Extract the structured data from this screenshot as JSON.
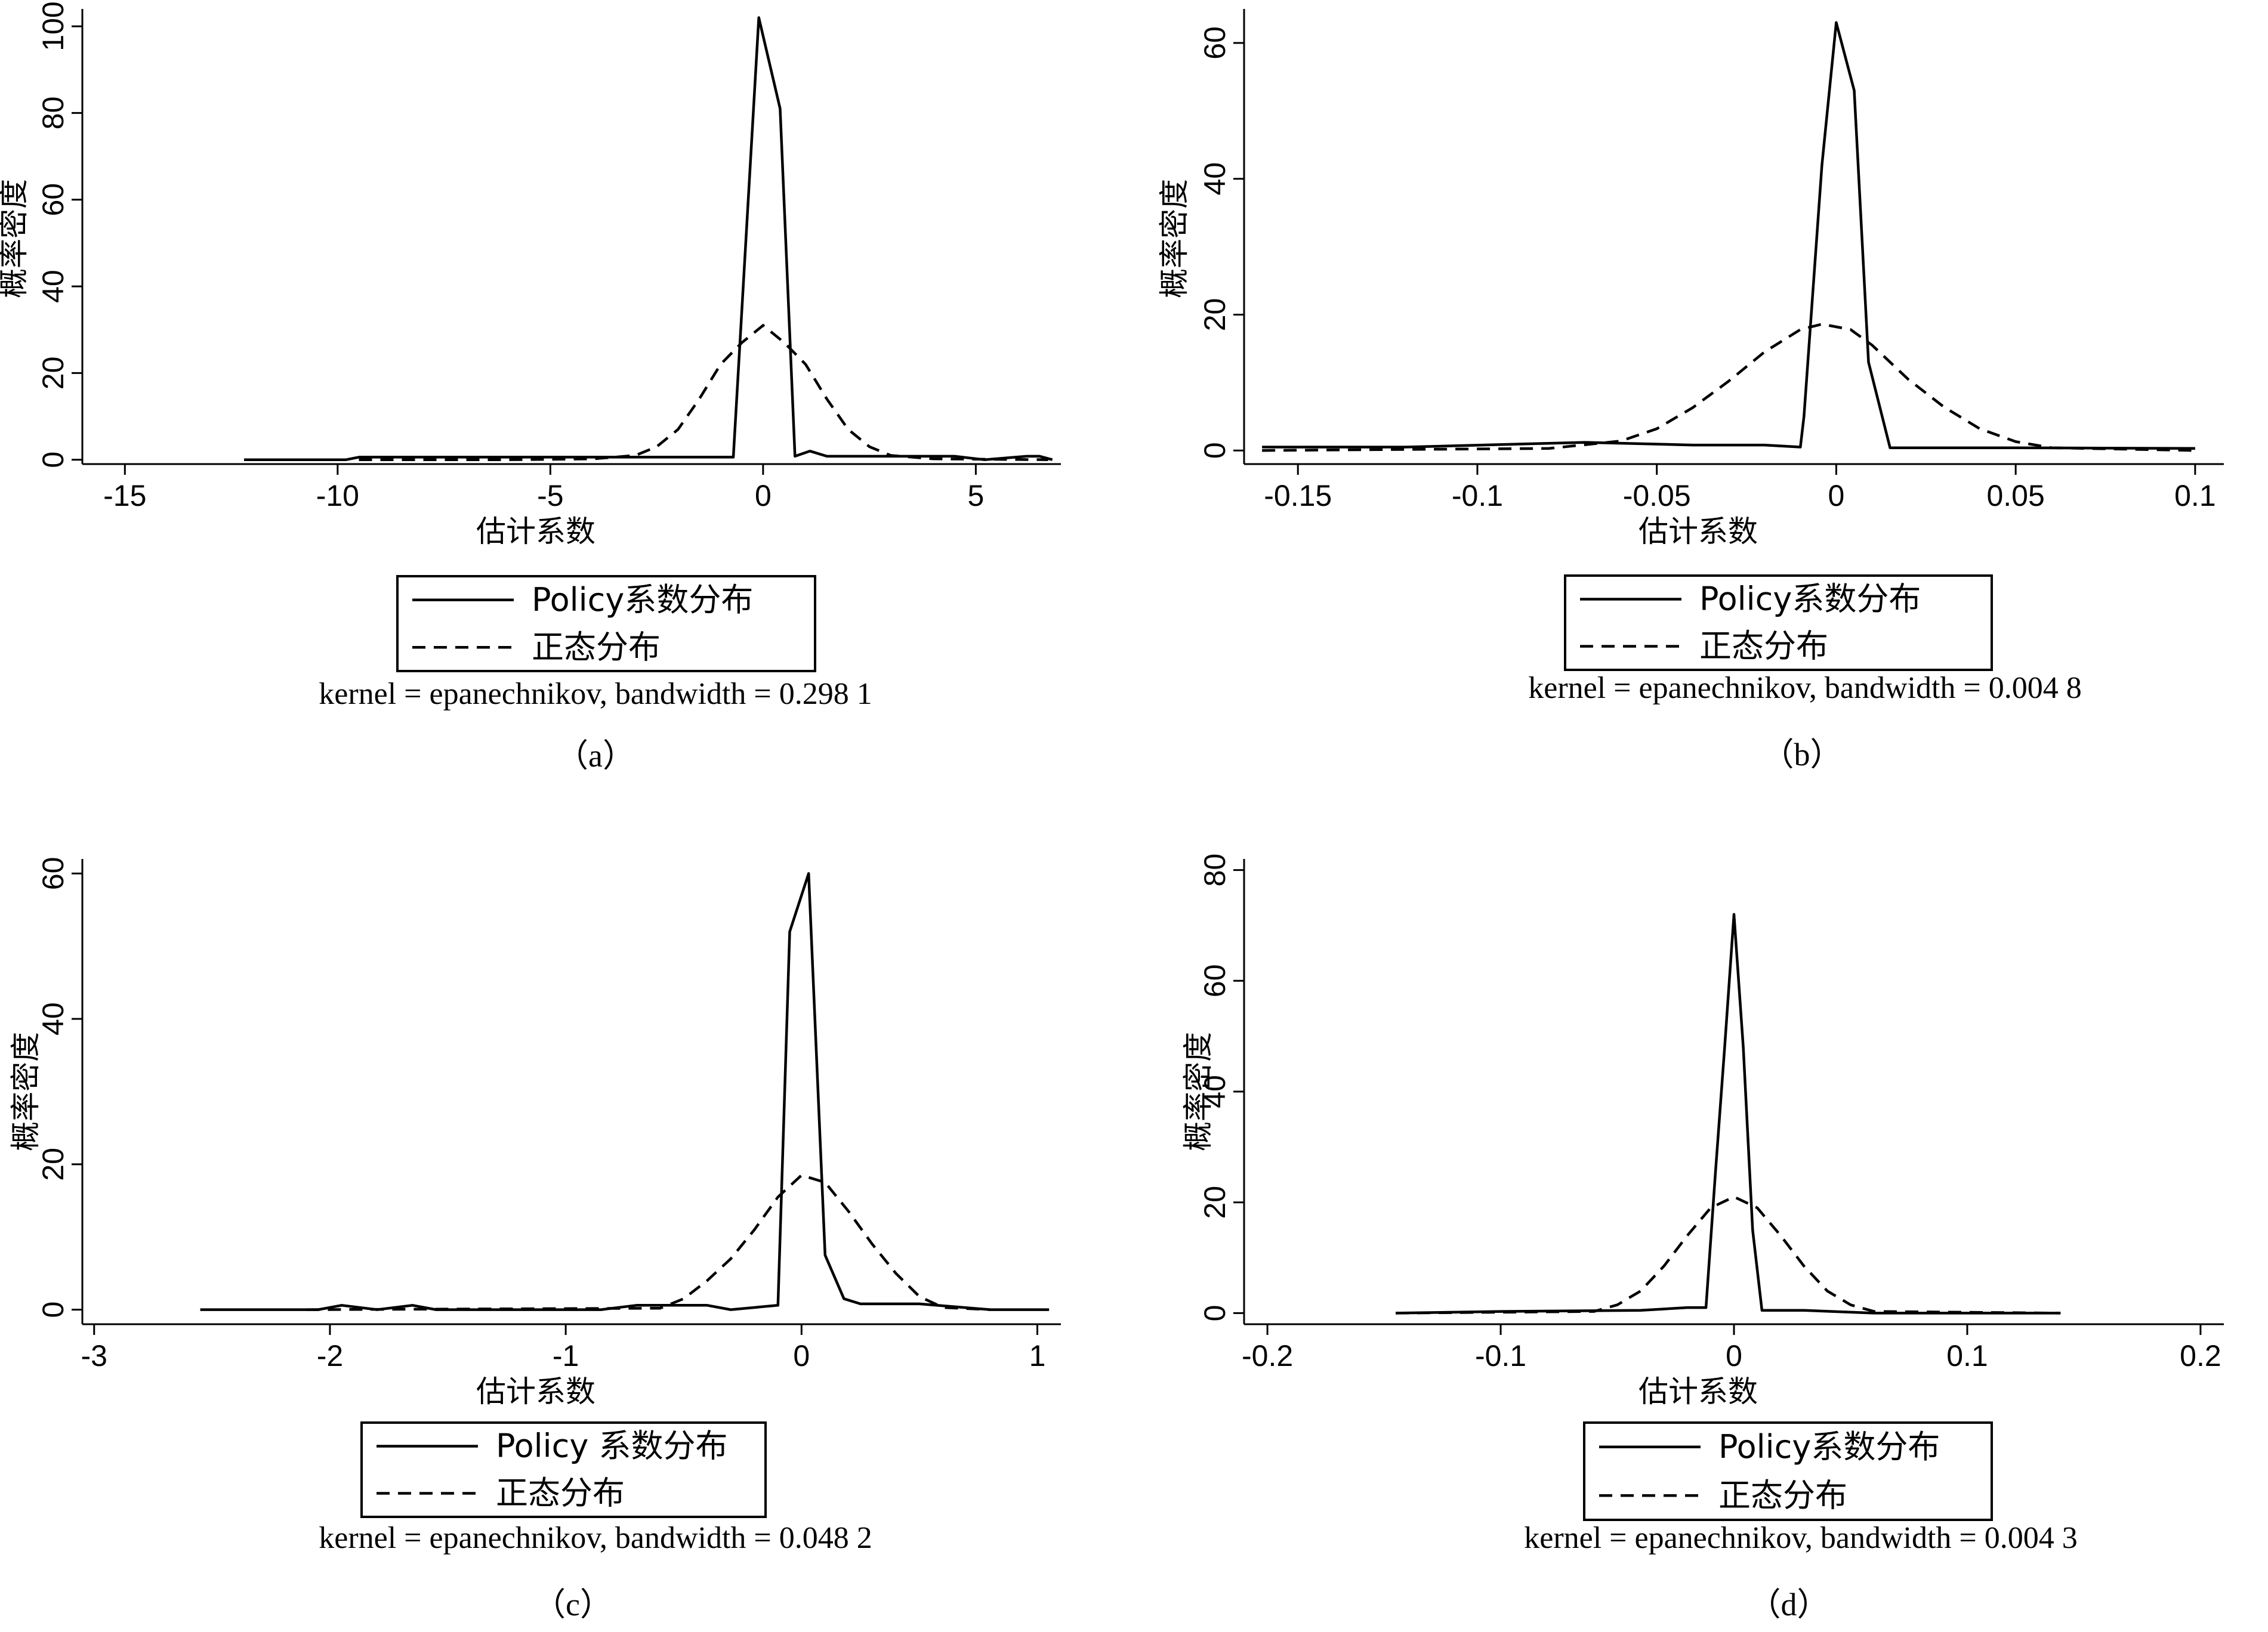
{
  "chart_data": [
    {
      "type": "line",
      "panel": "(a)",
      "caption": "（a）",
      "xlabel": "估计系数",
      "ylabel": "概率密度",
      "xlim": [
        -16,
        7
      ],
      "ylim": [
        -1,
        104
      ],
      "xticks": [
        -15,
        -10,
        -5,
        0,
        5
      ],
      "xtick_labels": [
        "-15",
        "-10",
        "-5",
        "0",
        "5"
      ],
      "yticks": [
        0,
        20,
        40,
        60,
        80,
        100
      ],
      "ytick_labels": [
        "0",
        "20",
        "40",
        "60",
        "80",
        "100"
      ],
      "legend": {
        "solid": "Policy系数分布",
        "dashed": "正态分布"
      },
      "note": "kernel = epanechnikov, bandwidth = 0.298 1",
      "series": [
        {
          "name": "Policy系数分布",
          "style": "solid",
          "x": [
            -12.2,
            -9.8,
            -9.5,
            -5,
            -1,
            -0.7,
            -0.1,
            0.4,
            0.75,
            1.1,
            1.5,
            3,
            4.5,
            5.2,
            6.2,
            6.5,
            6.8
          ],
          "y": [
            0,
            0,
            0.6,
            0.6,
            0.6,
            0.6,
            102,
            81,
            0.8,
            2,
            0.8,
            0.8,
            0.8,
            0,
            0.8,
            0.8,
            0
          ]
        },
        {
          "name": "正态分布",
          "style": "dashed",
          "x": [
            -9.5,
            -6,
            -4,
            -3,
            -2.5,
            -2,
            -1.5,
            -1,
            -0.5,
            0,
            0.5,
            1,
            1.5,
            2,
            2.5,
            3,
            4,
            6.7
          ],
          "y": [
            0,
            0,
            0.2,
            1,
            3,
            7,
            14,
            22,
            27,
            31,
            27,
            22,
            14,
            7,
            3,
            1,
            0.2,
            0
          ]
        }
      ]
    },
    {
      "type": "line",
      "panel": "(b)",
      "caption": "（b）",
      "xlabel": "估计系数",
      "ylabel": "概率密度",
      "xlim": [
        -0.165,
        0.108
      ],
      "ylim": [
        -2,
        65
      ],
      "xticks": [
        -0.15,
        -0.1,
        -0.05,
        0,
        0.05,
        0.1
      ],
      "xtick_labels": [
        "-0.15",
        "-0.1",
        "-0.05",
        "0",
        "0.05",
        "0.1"
      ],
      "yticks": [
        0,
        20,
        40,
        60
      ],
      "ytick_labels": [
        "0",
        "20",
        "40",
        "60"
      ],
      "legend": {
        "solid": "Policy系数分布",
        "dashed": "正态分布"
      },
      "note": "kernel = epanechnikov, bandwidth = 0.004 8",
      "series": [
        {
          "name": "Policy系数分布",
          "style": "solid",
          "x": [
            -0.16,
            -0.12,
            -0.07,
            -0.04,
            -0.02,
            -0.01,
            -0.009,
            -0.004,
            0,
            0.005,
            0.009,
            0.015,
            0.05,
            0.1
          ],
          "y": [
            0.5,
            0.5,
            1.2,
            0.8,
            0.8,
            0.5,
            5,
            42,
            63,
            53,
            13,
            0.4,
            0.4,
            0.3
          ]
        },
        {
          "name": "正态分布",
          "style": "dashed",
          "x": [
            -0.16,
            -0.08,
            -0.06,
            -0.05,
            -0.04,
            -0.03,
            -0.02,
            -0.01,
            -0.004,
            0.004,
            0.01,
            0.02,
            0.03,
            0.04,
            0.05,
            0.06,
            0.1
          ],
          "y": [
            0,
            0.3,
            1.4,
            3.2,
            6.3,
            10.2,
            14.5,
            17.8,
            18.6,
            17.8,
            15.5,
            10.5,
            6.4,
            3.2,
            1.3,
            0.4,
            0
          ]
        }
      ]
    },
    {
      "type": "line",
      "panel": "(c)",
      "caption": "（c）",
      "xlabel": "估计系数",
      "ylabel": "概率密度",
      "xlim": [
        -3.05,
        1.1
      ],
      "ylim": [
        -2,
        62
      ],
      "xticks": [
        -3,
        -2,
        -1,
        0,
        1
      ],
      "xtick_labels": [
        "-3",
        "-2",
        "-1",
        "0",
        "1"
      ],
      "yticks": [
        0,
        20,
        40,
        60
      ],
      "ytick_labels": [
        "0",
        "20",
        "40",
        "60"
      ],
      "legend": {
        "solid": "Policy 系数分布",
        "dashed": "正态分布"
      },
      "note": "kernel = epanechnikov, bandwidth = 0.048 2",
      "series": [
        {
          "name": "Policy 系数分布",
          "style": "solid",
          "x": [
            -2.55,
            -2.05,
            -1.95,
            -1.8,
            -1.65,
            -1.55,
            -0.85,
            -0.7,
            -0.4,
            -0.3,
            -0.1,
            -0.05,
            0.03,
            0.1,
            0.18,
            0.25,
            0.5,
            0.8,
            1.05
          ],
          "y": [
            0,
            0,
            0.6,
            0,
            0.6,
            0,
            0,
            0.6,
            0.6,
            0,
            0.6,
            52,
            60,
            7.5,
            1.5,
            0.8,
            0.8,
            0,
            0
          ]
        },
        {
          "name": "正态分布",
          "style": "dashed",
          "x": [
            -2.1,
            -0.6,
            -0.5,
            -0.4,
            -0.3,
            -0.2,
            -0.1,
            0,
            0.1,
            0.2,
            0.3,
            0.4,
            0.5,
            0.6,
            0.8
          ],
          "y": [
            0,
            0.2,
            1.5,
            4,
            7,
            11,
            15.5,
            18.5,
            17.5,
            13.5,
            9,
            5,
            1.8,
            0.3,
            0
          ]
        }
      ]
    },
    {
      "type": "line",
      "panel": "(d)",
      "caption": "（d）",
      "xlabel": "估计系数",
      "ylabel": "概率密度",
      "xlim": [
        -0.21,
        0.21
      ],
      "ylim": [
        -2,
        82
      ],
      "xticks": [
        -0.2,
        -0.1,
        0,
        0.1,
        0.2
      ],
      "xtick_labels": [
        "-0.2",
        "-0.1",
        "0",
        "0.1",
        "0.2"
      ],
      "yticks": [
        0,
        20,
        40,
        60,
        80
      ],
      "ytick_labels": [
        "0",
        "20",
        "40",
        "60",
        "80"
      ],
      "legend": {
        "solid": "Policy系数分布",
        "dashed": "正态分布"
      },
      "note": "kernel = epanechnikov, bandwidth = 0.004 3",
      "series": [
        {
          "name": "Policy系数分布",
          "style": "solid",
          "x": [
            -0.145,
            -0.1,
            -0.04,
            -0.02,
            -0.012,
            -0.008,
            -0.004,
            0,
            0.004,
            0.008,
            0.012,
            0.03,
            0.06,
            0.14
          ],
          "y": [
            0,
            0.3,
            0.5,
            1,
            1,
            25,
            48,
            72,
            48,
            15,
            0.5,
            0.5,
            0,
            0
          ]
        },
        {
          "name": "正态分布",
          "style": "dashed",
          "x": [
            -0.145,
            -0.06,
            -0.05,
            -0.04,
            -0.03,
            -0.02,
            -0.01,
            0,
            0.01,
            0.02,
            0.03,
            0.04,
            0.05,
            0.06,
            0.14
          ],
          "y": [
            0,
            0.3,
            1.5,
            4,
            8.5,
            14,
            19,
            21,
            19,
            14,
            8.5,
            4,
            1.5,
            0.3,
            0
          ]
        }
      ]
    }
  ]
}
